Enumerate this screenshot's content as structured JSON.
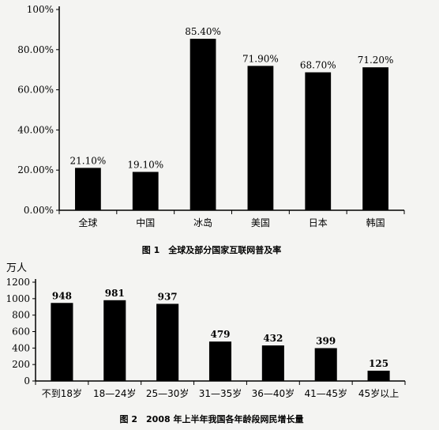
{
  "chart_data": [
    {
      "type": "bar",
      "title": "图 1　全球及部分国家互联网普及率",
      "categories": [
        "全球",
        "中国",
        "冰岛",
        "美国",
        "日本",
        "韩国"
      ],
      "values": [
        21.1,
        19.1,
        85.4,
        71.9,
        68.7,
        71.2
      ],
      "value_labels": [
        "21.10%",
        "19.10%",
        "85.40%",
        "71.90%",
        "68.70%",
        "71.20%"
      ],
      "ylim": [
        0,
        100
      ],
      "yticks": [
        0,
        20,
        40,
        60,
        80,
        100
      ],
      "ytick_labels": [
        "0.00%",
        "20.00%",
        "40.00%",
        "60.00%",
        "80.00%",
        "100%"
      ],
      "grid": false,
      "bar_color": "#000000"
    },
    {
      "type": "bar",
      "title": "图 2　2008 年上半年我国各年龄段网民增长量",
      "ylabel": "万人",
      "categories": [
        "不到18岁",
        "18—24岁",
        "25—30岁",
        "31—35岁",
        "36—40岁",
        "41—45岁",
        "45岁以上"
      ],
      "values": [
        948,
        981,
        937,
        479,
        432,
        399,
        125
      ],
      "value_labels": [
        "948",
        "981",
        "937",
        "479",
        "432",
        "399",
        "125"
      ],
      "ylim": [
        0,
        1200
      ],
      "yticks": [
        0,
        200,
        400,
        600,
        800,
        1000,
        1200
      ],
      "ytick_labels": [
        "0",
        "200",
        "400",
        "600",
        "800",
        "1000",
        "1200"
      ],
      "grid": false,
      "bar_color": "#000000"
    }
  ]
}
